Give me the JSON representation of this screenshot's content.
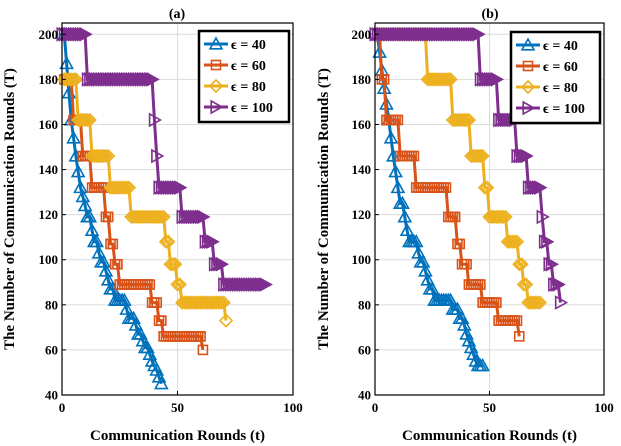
{
  "colors": {
    "eps40": "#0072BD",
    "eps60": "#D95319",
    "eps80": "#EDB120",
    "eps100": "#7E2F8E"
  },
  "chart_data": [
    {
      "type": "line",
      "title": "(a)",
      "xlabel": "Communication Rounds (t)",
      "ylabel": "The Number of Communication Rounds (T)",
      "xlim": [
        0,
        100
      ],
      "ylim": [
        40,
        205
      ],
      "xticks": [
        "0",
        "50",
        "100"
      ],
      "yticks": [
        "40",
        "60",
        "80",
        "100",
        "120",
        "140",
        "160",
        "180",
        "200"
      ],
      "grid": true,
      "legend_position": "top-right",
      "series": [
        {
          "name": "ϵ = 40",
          "marker": "triangle-up",
          "color": "#0072BD",
          "x": [
            1,
            2,
            3,
            4,
            5,
            6,
            7,
            8,
            9,
            10,
            11,
            12,
            13,
            14,
            15,
            16,
            17,
            18,
            19,
            20,
            21,
            22,
            23,
            24,
            25,
            26,
            27,
            28,
            29,
            30,
            31,
            32,
            33,
            34,
            35,
            36,
            37,
            38,
            39,
            40,
            41,
            42,
            43
          ],
          "y": [
            200,
            187,
            174,
            162,
            154,
            146,
            139,
            132,
            128,
            124,
            119,
            119,
            113,
            108,
            108,
            103,
            99,
            99,
            95,
            91,
            87,
            87,
            82,
            82,
            82,
            82,
            82,
            78,
            74,
            74,
            74,
            71,
            67,
            67,
            64,
            61,
            61,
            58,
            55,
            53,
            51,
            48,
            45
          ]
        },
        {
          "name": "ϵ = 60",
          "marker": "square",
          "color": "#D95319",
          "x": [
            1,
            2,
            3,
            4,
            5,
            6,
            7,
            8,
            9,
            10,
            11,
            12,
            13,
            14,
            15,
            16,
            17,
            18,
            19,
            20,
            21,
            22,
            23,
            24,
            25,
            26,
            27,
            28,
            29,
            30,
            31,
            32,
            33,
            34,
            35,
            36,
            37,
            38,
            39,
            40,
            41,
            42,
            43,
            44,
            45,
            46,
            47,
            48,
            49,
            50,
            51,
            52,
            53,
            54,
            55,
            56,
            57,
            58,
            59,
            60,
            61
          ],
          "y": [
            180,
            180,
            180,
            180,
            162,
            162,
            162,
            162,
            146,
            146,
            146,
            146,
            132,
            132,
            132,
            132,
            132,
            132,
            119,
            119,
            107,
            107,
            98,
            98,
            89,
            89,
            89,
            89,
            89,
            89,
            89,
            89,
            89,
            89,
            89,
            89,
            89,
            89,
            81,
            81,
            81,
            73,
            73,
            66,
            66,
            66,
            66,
            66,
            66,
            66,
            66,
            66,
            66,
            66,
            66,
            66,
            66,
            66,
            66,
            66,
            60
          ]
        },
        {
          "name": "ϵ = 80",
          "marker": "diamond",
          "color": "#EDB120",
          "x": [
            1,
            2,
            3,
            4,
            5,
            6,
            7,
            8,
            9,
            10,
            11,
            12,
            13,
            14,
            15,
            16,
            17,
            18,
            19,
            20,
            21,
            22,
            23,
            24,
            25,
            26,
            27,
            28,
            29,
            30,
            31,
            32,
            33,
            34,
            35,
            36,
            37,
            38,
            39,
            40,
            41,
            42,
            43,
            44,
            45,
            46,
            47,
            48,
            49,
            50,
            51,
            52,
            53,
            54,
            55,
            56,
            57,
            58,
            59,
            60,
            61,
            62,
            63,
            64,
            65,
            66,
            67,
            68,
            69,
            70,
            71
          ],
          "y": [
            180,
            180,
            180,
            180,
            180,
            180,
            162,
            162,
            162,
            162,
            162,
            162,
            146,
            146,
            146,
            146,
            146,
            146,
            146,
            146,
            132,
            132,
            132,
            132,
            132,
            132,
            132,
            132,
            132,
            119,
            119,
            119,
            119,
            119,
            119,
            119,
            119,
            119,
            119,
            119,
            119,
            119,
            119,
            119,
            108,
            108,
            98,
            98,
            98,
            89,
            89,
            81,
            81,
            81,
            81,
            81,
            81,
            81,
            81,
            81,
            81,
            81,
            81,
            81,
            81,
            81,
            81,
            81,
            81,
            81,
            73
          ]
        },
        {
          "name": "ϵ = 100",
          "marker": "triangle-right",
          "color": "#7E2F8E",
          "x": [
            0,
            1,
            2,
            3,
            4,
            5,
            6,
            7,
            8,
            9,
            10,
            11,
            12,
            13,
            14,
            15,
            16,
            17,
            18,
            19,
            20,
            21,
            22,
            23,
            24,
            25,
            26,
            27,
            28,
            29,
            30,
            31,
            32,
            33,
            34,
            35,
            36,
            37,
            38,
            39,
            40,
            41,
            42,
            43,
            44,
            45,
            46,
            47,
            48,
            49,
            50,
            51,
            52,
            53,
            54,
            55,
            56,
            57,
            58,
            59,
            60,
            61,
            62,
            63,
            64,
            65,
            66,
            67,
            68,
            69,
            70,
            71,
            72,
            73,
            74,
            75,
            76,
            77,
            78,
            79,
            80,
            81,
            82,
            83,
            84,
            85,
            86,
            87,
            88
          ],
          "y": [
            200,
            200,
            200,
            200,
            200,
            200,
            200,
            200,
            200,
            200,
            200,
            180,
            180,
            180,
            180,
            180,
            180,
            180,
            180,
            180,
            180,
            180,
            180,
            180,
            180,
            180,
            180,
            180,
            180,
            180,
            180,
            180,
            180,
            180,
            180,
            180,
            180,
            180,
            180,
            180,
            162,
            146,
            132,
            132,
            132,
            132,
            132,
            132,
            132,
            132,
            132,
            132,
            119,
            119,
            119,
            119,
            119,
            119,
            119,
            119,
            119,
            119,
            108,
            108,
            108,
            108,
            98,
            98,
            98,
            98,
            89,
            89,
            89,
            89,
            89,
            89,
            89,
            89,
            89,
            89,
            89,
            89,
            89,
            89,
            89,
            89,
            89,
            89,
            89
          ]
        }
      ]
    },
    {
      "type": "line",
      "title": "(b)",
      "xlabel": "Communication Rounds (t)",
      "ylabel": "The Number of Communication Rounds (T)",
      "xlim": [
        0,
        100
      ],
      "ylim": [
        40,
        205
      ],
      "xticks": [
        "0",
        "50",
        "100"
      ],
      "yticks": [
        "40",
        "60",
        "80",
        "100",
        "120",
        "140",
        "160",
        "180",
        "200"
      ],
      "grid": true,
      "legend_position": "top-right",
      "series": [
        {
          "name": "ϵ = 40",
          "marker": "triangle-up",
          "color": "#0072BD",
          "x": [
            1,
            2,
            3,
            4,
            5,
            6,
            7,
            8,
            9,
            10,
            11,
            12,
            13,
            14,
            15,
            16,
            17,
            18,
            19,
            20,
            21,
            22,
            23,
            24,
            25,
            26,
            27,
            28,
            29,
            30,
            31,
            32,
            33,
            34,
            35,
            36,
            37,
            38,
            39,
            40,
            41,
            42,
            43,
            44,
            45,
            46,
            47
          ],
          "y": [
            200,
            192,
            184,
            176,
            169,
            162,
            154,
            146,
            139,
            132,
            125,
            125,
            119,
            113,
            108,
            108,
            108,
            108,
            103,
            99,
            99,
            95,
            91,
            87,
            87,
            82,
            82,
            82,
            82,
            82,
            82,
            82,
            82,
            78,
            78,
            78,
            74,
            74,
            71,
            67,
            64,
            61,
            58,
            55,
            53,
            53,
            53
          ]
        },
        {
          "name": "ϵ = 60",
          "marker": "square",
          "color": "#D95319",
          "x": [
            1,
            2,
            3,
            4,
            5,
            6,
            7,
            8,
            9,
            10,
            11,
            12,
            13,
            14,
            15,
            16,
            17,
            18,
            19,
            20,
            21,
            22,
            23,
            24,
            25,
            26,
            27,
            28,
            29,
            30,
            31,
            32,
            33,
            34,
            35,
            36,
            37,
            38,
            39,
            40,
            41,
            42,
            43,
            44,
            45,
            46,
            47,
            48,
            49,
            50,
            51,
            52,
            53,
            54,
            55,
            56,
            57,
            58,
            59,
            60,
            61,
            62,
            63
          ],
          "y": [
            200,
            200,
            180,
            180,
            162,
            162,
            162,
            162,
            162,
            162,
            146,
            146,
            146,
            146,
            146,
            146,
            146,
            132,
            132,
            132,
            132,
            132,
            132,
            132,
            132,
            132,
            132,
            132,
            132,
            132,
            132,
            119,
            119,
            119,
            119,
            107,
            107,
            98,
            98,
            98,
            89,
            89,
            89,
            89,
            89,
            89,
            81,
            81,
            81,
            81,
            81,
            81,
            81,
            73,
            73,
            73,
            73,
            73,
            73,
            73,
            73,
            73,
            66
          ]
        },
        {
          "name": "ϵ = 80",
          "marker": "diamond",
          "color": "#EDB120",
          "x": [
            1,
            2,
            3,
            4,
            5,
            6,
            7,
            8,
            9,
            10,
            11,
            12,
            13,
            14,
            15,
            16,
            17,
            18,
            19,
            20,
            21,
            22,
            23,
            24,
            25,
            26,
            27,
            28,
            29,
            30,
            31,
            32,
            33,
            34,
            35,
            36,
            37,
            38,
            39,
            40,
            41,
            42,
            43,
            44,
            45,
            46,
            47,
            48,
            49,
            50,
            51,
            52,
            53,
            54,
            55,
            56,
            57,
            58,
            59,
            60,
            61,
            62,
            63,
            64,
            65,
            66,
            67,
            68,
            69,
            70,
            71,
            72
          ],
          "y": [
            200,
            200,
            200,
            200,
            200,
            200,
            200,
            200,
            200,
            200,
            200,
            200,
            200,
            200,
            200,
            200,
            200,
            200,
            200,
            200,
            200,
            200,
            180,
            180,
            180,
            180,
            180,
            180,
            180,
            180,
            180,
            180,
            180,
            162,
            162,
            162,
            162,
            162,
            162,
            162,
            162,
            146,
            146,
            146,
            146,
            146,
            146,
            132,
            132,
            119,
            119,
            119,
            119,
            119,
            119,
            119,
            119,
            108,
            108,
            108,
            108,
            108,
            98,
            98,
            89,
            89,
            81,
            81,
            81,
            81,
            81,
            81
          ]
        },
        {
          "name": "ϵ = 100",
          "marker": "triangle-right",
          "color": "#7E2F8E",
          "x": [
            0,
            1,
            2,
            3,
            4,
            5,
            6,
            7,
            8,
            9,
            10,
            11,
            12,
            13,
            14,
            15,
            16,
            17,
            18,
            19,
            20,
            21,
            22,
            23,
            24,
            25,
            26,
            27,
            28,
            29,
            30,
            31,
            32,
            33,
            34,
            35,
            36,
            37,
            38,
            39,
            40,
            41,
            42,
            43,
            44,
            45,
            46,
            47,
            48,
            49,
            50,
            51,
            52,
            53,
            54,
            55,
            56,
            57,
            58,
            59,
            60,
            61,
            62,
            63,
            64,
            65,
            66,
            67,
            68,
            69,
            70,
            71,
            72,
            73,
            74,
            75,
            76,
            77,
            78,
            79,
            80,
            81
          ],
          "y": [
            200,
            200,
            200,
            200,
            200,
            200,
            200,
            200,
            200,
            200,
            200,
            200,
            200,
            200,
            200,
            200,
            200,
            200,
            200,
            200,
            200,
            200,
            200,
            200,
            200,
            200,
            200,
            200,
            200,
            200,
            200,
            200,
            200,
            200,
            200,
            200,
            200,
            200,
            200,
            200,
            200,
            200,
            200,
            200,
            200,
            200,
            180,
            180,
            180,
            180,
            180,
            180,
            180,
            180,
            162,
            162,
            162,
            162,
            162,
            162,
            162,
            162,
            146,
            146,
            146,
            146,
            146,
            132,
            132,
            132,
            132,
            132,
            132,
            119,
            108,
            108,
            98,
            98,
            89,
            89,
            89,
            81
          ]
        }
      ]
    }
  ]
}
